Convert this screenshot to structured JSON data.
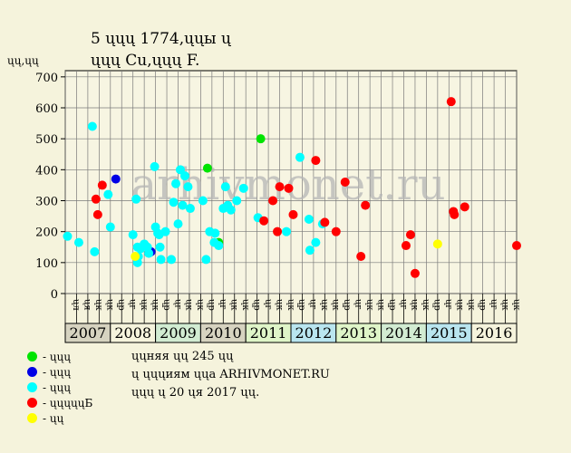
{
  "header": {
    "title_line1": "5 ųųų 1774,ųųы ų",
    "title_line2": "ųųų Cu,ųųų F."
  },
  "watermark": "arhivmonet.ru",
  "legend": [
    {
      "label": "- ųųų",
      "color": "#00e400"
    },
    {
      "label": "- ųųų",
      "color": "#0000e6"
    },
    {
      "label": "- ųųų",
      "color": "#00ffff"
    },
    {
      "label": "- ųųųųųБ",
      "color": "#ff0000"
    },
    {
      "label": "- ųų",
      "color": "#ffff00"
    }
  ],
  "notes": [
    "ųųняя ųų 245 ųų",
    "ų ųųųиям ųųа ARHIVMONET.RU",
    "ųųų ų 20 ųя 2017 ųų."
  ],
  "chart_data": {
    "type": "scatter",
    "title": "5 ųųų 1774,ųųы ų ųųų Cu,ųųų F.",
    "ylabel": "ųų,ųų",
    "ylim": [
      0,
      720
    ],
    "yticks": [
      0,
      100,
      200,
      300,
      400,
      500,
      600,
      700
    ],
    "xlim": [
      2007,
      2017
    ],
    "grid": true,
    "legend_position": "bottom-left",
    "years": [
      "2007",
      "2008",
      "2009",
      "2010",
      "2011",
      "2012",
      "2013",
      "2014",
      "2015",
      "2016"
    ],
    "year_colors": [
      "#d6d3c0",
      "#f5f3dc",
      "#d2ecd2",
      "#d6d3c0",
      "#dff5c8",
      "#b9e5ef",
      "#dff5c8",
      "#d2ecd2",
      "#b9e5ef",
      "#f5f3dc"
    ],
    "quarter_labels": [
      "ųл",
      "ųя",
      "ųк",
      "ųк",
      "ųр",
      "ųг",
      "ųк",
      "ųк",
      "ųр",
      "ųг",
      "ųк",
      "ųк",
      "ųр",
      "ųг",
      "ųк",
      "ųк",
      "ųр",
      "ųг",
      "ųк",
      "ųк",
      "ųр",
      "ųг",
      "ųк",
      "ųк",
      "ųр",
      "ųг",
      "ųк",
      "ųк",
      "ųр",
      "ųг",
      "ųк",
      "ųк",
      "ųр",
      "ųг",
      "ųк",
      "ųк",
      "ųр",
      "ųг",
      "ųк",
      "ųк"
    ],
    "series": [
      {
        "color": "#00e400",
        "points": [
          [
            2010.15,
            405
          ],
          [
            2010.4,
            165
          ],
          [
            2011.33,
            500
          ]
        ]
      },
      {
        "color": "#0000e6",
        "points": [
          [
            2008.12,
            370
          ],
          [
            2008.9,
            135
          ]
        ]
      },
      {
        "color": "#00ffff",
        "points": [
          [
            2007.05,
            185
          ],
          [
            2007.3,
            165
          ],
          [
            2007.6,
            540
          ],
          [
            2007.65,
            135
          ],
          [
            2007.95,
            320
          ],
          [
            2008.0,
            215
          ],
          [
            2008.5,
            190
          ],
          [
            2008.57,
            305
          ],
          [
            2008.6,
            150
          ],
          [
            2008.6,
            100
          ],
          [
            2008.62,
            120
          ],
          [
            2008.67,
            145
          ],
          [
            2008.75,
            160
          ],
          [
            2008.82,
            150
          ],
          [
            2008.85,
            130
          ],
          [
            2008.98,
            410
          ],
          [
            2009.0,
            215
          ],
          [
            2009.05,
            195
          ],
          [
            2009.08,
            190
          ],
          [
            2009.12,
            110
          ],
          [
            2009.1,
            150
          ],
          [
            2009.22,
            200
          ],
          [
            2009.35,
            110
          ],
          [
            2009.4,
            295
          ],
          [
            2009.45,
            355
          ],
          [
            2009.5,
            225
          ],
          [
            2009.55,
            400
          ],
          [
            2009.6,
            285
          ],
          [
            2009.65,
            380
          ],
          [
            2009.72,
            345
          ],
          [
            2009.77,
            275
          ],
          [
            2010.05,
            300
          ],
          [
            2010.12,
            110
          ],
          [
            2010.2,
            200
          ],
          [
            2010.3,
            165
          ],
          [
            2010.32,
            195
          ],
          [
            2010.4,
            155
          ],
          [
            2010.5,
            275
          ],
          [
            2010.55,
            345
          ],
          [
            2010.6,
            285
          ],
          [
            2010.67,
            270
          ],
          [
            2010.8,
            300
          ],
          [
            2010.95,
            340
          ],
          [
            2011.27,
            245
          ],
          [
            2011.9,
            200
          ],
          [
            2012.2,
            440
          ],
          [
            2012.4,
            240
          ],
          [
            2012.42,
            140
          ],
          [
            2012.55,
            165
          ],
          [
            2012.7,
            225
          ]
        ]
      },
      {
        "color": "#ff0000",
        "points": [
          [
            2007.68,
            305
          ],
          [
            2007.72,
            255
          ],
          [
            2007.82,
            350
          ],
          [
            2011.4,
            235
          ],
          [
            2011.6,
            300
          ],
          [
            2011.7,
            200
          ],
          [
            2011.75,
            345
          ],
          [
            2011.95,
            340
          ],
          [
            2012.05,
            255
          ],
          [
            2012.55,
            430
          ],
          [
            2012.75,
            230
          ],
          [
            2013.0,
            200
          ],
          [
            2013.2,
            360
          ],
          [
            2013.55,
            120
          ],
          [
            2013.65,
            285
          ],
          [
            2014.55,
            155
          ],
          [
            2014.65,
            190
          ],
          [
            2014.75,
            65
          ],
          [
            2015.55,
            620
          ],
          [
            2015.6,
            265
          ],
          [
            2015.62,
            255
          ],
          [
            2015.85,
            280
          ],
          [
            2017.0,
            155
          ]
        ]
      },
      {
        "color": "#ffff00",
        "points": [
          [
            2008.55,
            120
          ],
          [
            2015.25,
            160
          ]
        ]
      }
    ]
  }
}
